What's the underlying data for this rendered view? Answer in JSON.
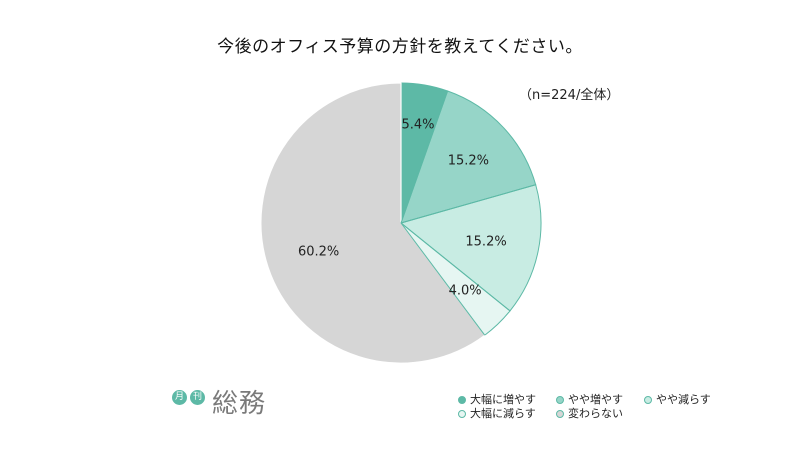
{
  "chart_data": {
    "type": "pie",
    "title": "今後のオフィス予算の方針を教えてください。",
    "sample_note": "（n=224/全体）",
    "slices": [
      {
        "label": "大幅に増やす",
        "value": 5.4,
        "value_label": "5.4%",
        "color": "#5db9a6"
      },
      {
        "label": "やや増やす",
        "value": 15.2,
        "value_label": "15.2%",
        "color": "#96d5c8"
      },
      {
        "label": "やや減らす",
        "value": 15.2,
        "value_label": "15.2%",
        "color": "#c8ece3"
      },
      {
        "label": "大幅に減らす",
        "value": 4.0,
        "value_label": "4.0%",
        "color": "#e6f6f2"
      },
      {
        "label": "変わらない",
        "value": 60.2,
        "value_label": "60.2%",
        "color": "#d6d6d6"
      }
    ],
    "start_angle": "12 o'clock",
    "direction": "clockwise",
    "legend_position": "bottom-right"
  },
  "logo": {
    "badge_1": "月",
    "badge_2": "刊",
    "word": "総務"
  },
  "colors": {
    "edge_stroke": "#5db9a6",
    "slice_divider": "#ffffff"
  }
}
